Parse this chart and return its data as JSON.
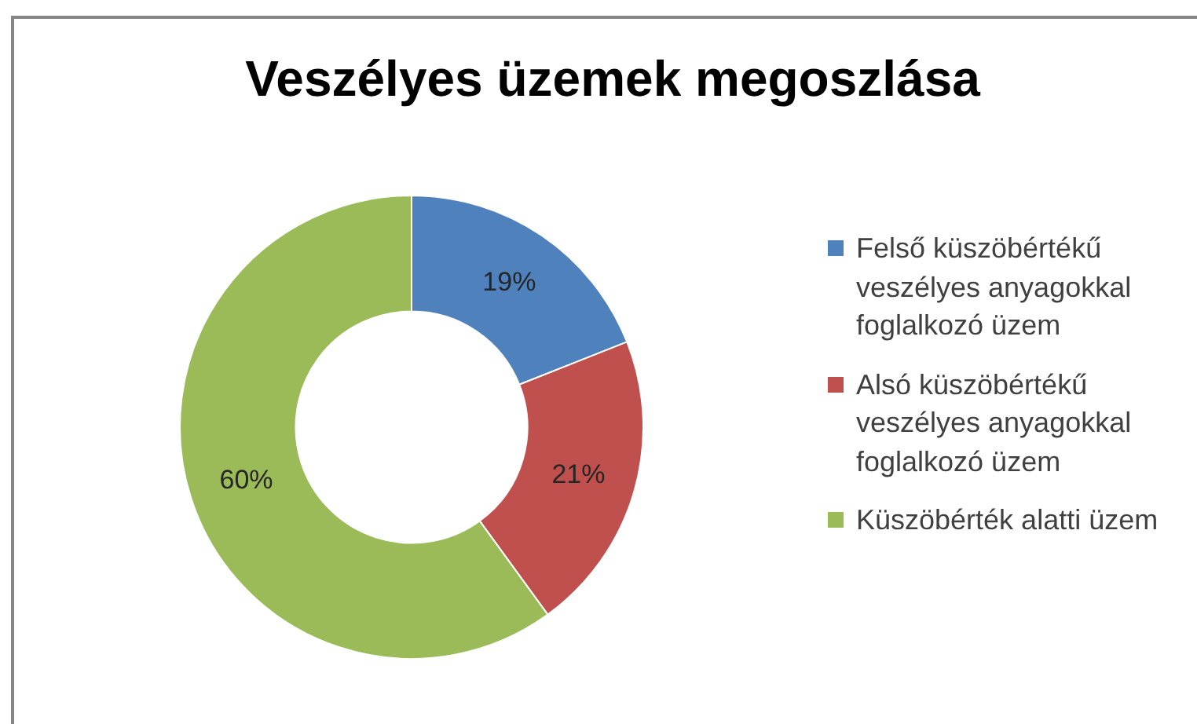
{
  "chart_data": {
    "type": "donut",
    "title": "Veszélyes üzemek megoszlása",
    "categories": [
      "Felső küszöbértékű veszélyes anyagokkal foglalkozó üzem",
      "Alsó küszöbértékű veszélyes anyagokkal foglalkozó üzem",
      "Küszöbérték alatti üzem"
    ],
    "values": [
      19,
      21,
      60
    ],
    "colors": [
      "#4f81bd",
      "#c0504d",
      "#9bbb59"
    ],
    "value_labels": [
      "19%",
      "21%",
      "60%"
    ],
    "legend": "right"
  }
}
